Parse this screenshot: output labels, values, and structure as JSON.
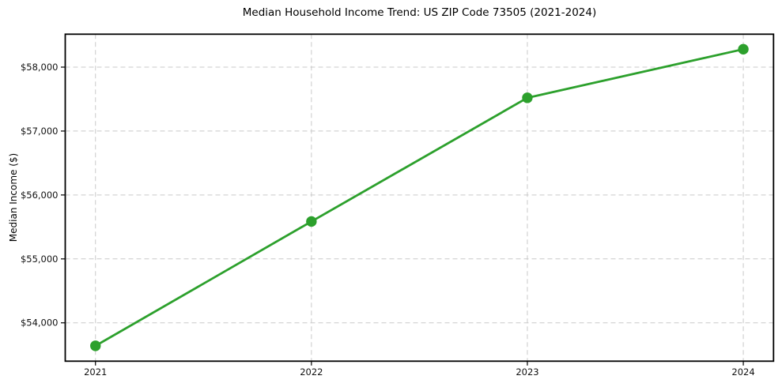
{
  "chart_data": {
    "type": "line",
    "title": "Median Household Income Trend: US ZIP Code 73505 (2021-2024)",
    "xlabel": "",
    "ylabel": "Median Income ($)",
    "x": [
      2021,
      2022,
      2023,
      2024
    ],
    "x_tick_labels": [
      "2021",
      "2022",
      "2023",
      "2024"
    ],
    "series": [
      {
        "name": "Median Household Income",
        "values": [
          53640,
          55585,
          57520,
          58280
        ]
      }
    ],
    "y_ticks": [
      54000,
      55000,
      56000,
      57000,
      58000
    ],
    "y_tick_labels": [
      "$54,000",
      "$55,000",
      "$56,000",
      "$57,000",
      "$58,000"
    ],
    "xlim": [
      2020.86,
      2024.14
    ],
    "ylim": [
      53400,
      58515
    ],
    "grid": true,
    "grid_style": "dashed",
    "legend_position": "none",
    "line_color": "#2ca02c",
    "marker": "circle",
    "marker_color": "#2ca02c",
    "grid_color": "#c9c9c9",
    "spine_color": "#000000",
    "tick_color": "#000000",
    "tick_label_color": "#111111",
    "background_color": "#ffffff"
  }
}
